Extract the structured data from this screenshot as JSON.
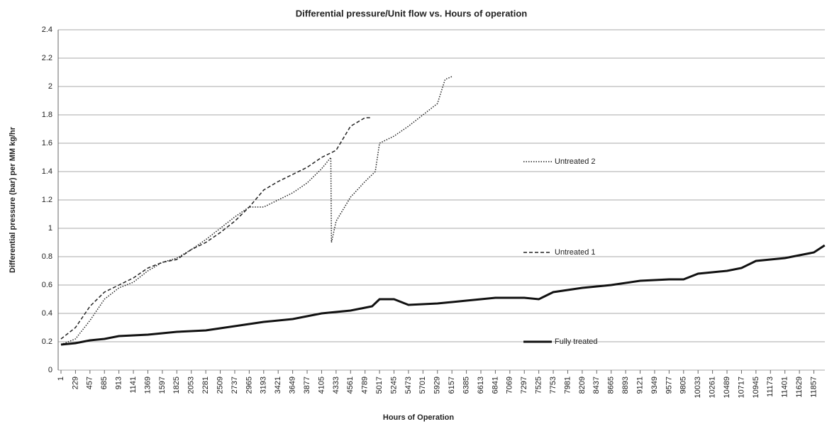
{
  "chart_data": {
    "type": "line",
    "title": "Differential pressure/Unit flow  vs. Hours of operation",
    "x_label": "Hours of Operation",
    "y_label": "Differential pressure (bar) per MM kg/hr",
    "xlim": [
      1,
      12030
    ],
    "ylim": [
      0,
      2.4
    ],
    "yticks": [
      0,
      0.2,
      0.4,
      0.6,
      0.8,
      1,
      1.2,
      1.4,
      1.6,
      1.8,
      2,
      2.2,
      2.4
    ],
    "xticks": [
      1,
      229,
      457,
      685,
      913,
      1141,
      1369,
      1597,
      1825,
      2053,
      2281,
      2509,
      2737,
      2965,
      3193,
      3421,
      3649,
      3877,
      4105,
      4333,
      4561,
      4789,
      5017,
      5245,
      5473,
      5701,
      5929,
      6157,
      6385,
      6613,
      6841,
      7069,
      7297,
      7525,
      7753,
      7981,
      8209,
      8437,
      8665,
      8893,
      9121,
      9349,
      9577,
      9805,
      10033,
      10261,
      10489,
      10717,
      10945,
      11173,
      11401,
      11629,
      11857
    ],
    "grid": true,
    "series": [
      {
        "name": "Untreated 2",
        "color": "#222222",
        "dash": "dotted",
        "width": 1.5,
        "x": [
          1,
          229,
          457,
          685,
          913,
          1141,
          1369,
          1597,
          1825,
          2053,
          2281,
          2509,
          2737,
          2965,
          3193,
          3421,
          3649,
          3877,
          4105,
          4250,
          4260,
          4333,
          4561,
          4789,
          4950,
          5017,
          5245,
          5473,
          5701,
          5929,
          6050,
          6157
        ],
        "values": [
          0.18,
          0.22,
          0.35,
          0.5,
          0.58,
          0.62,
          0.7,
          0.76,
          0.79,
          0.85,
          0.92,
          1.0,
          1.08,
          1.15,
          1.15,
          1.2,
          1.25,
          1.32,
          1.42,
          1.5,
          0.9,
          1.05,
          1.22,
          1.33,
          1.4,
          1.6,
          1.65,
          1.72,
          1.8,
          1.88,
          2.05,
          2.07
        ]
      },
      {
        "name": "Untreated 1",
        "color": "#222222",
        "dash": "dashed",
        "width": 1.5,
        "x": [
          1,
          229,
          457,
          685,
          913,
          1141,
          1369,
          1597,
          1825,
          2053,
          2281,
          2509,
          2737,
          2965,
          3193,
          3421,
          3649,
          3877,
          4105,
          4333,
          4561,
          4789,
          4900
        ],
        "values": [
          0.22,
          0.3,
          0.45,
          0.55,
          0.6,
          0.65,
          0.72,
          0.76,
          0.78,
          0.85,
          0.9,
          0.97,
          1.05,
          1.15,
          1.27,
          1.33,
          1.38,
          1.43,
          1.5,
          1.55,
          1.72,
          1.78,
          1.78
        ]
      },
      {
        "name": "Fully treated",
        "color": "#111111",
        "dash": "solid",
        "width": 3,
        "x": [
          1,
          229,
          457,
          685,
          913,
          1369,
          1825,
          2281,
          2737,
          3193,
          3649,
          4105,
          4561,
          4900,
          5017,
          5245,
          5473,
          5929,
          6385,
          6841,
          7297,
          7525,
          7753,
          8209,
          8665,
          9121,
          9577,
          9805,
          10033,
          10489,
          10717,
          10945,
          11401,
          11857,
          12027
        ],
        "values": [
          0.18,
          0.19,
          0.21,
          0.22,
          0.24,
          0.25,
          0.27,
          0.28,
          0.31,
          0.34,
          0.36,
          0.4,
          0.42,
          0.45,
          0.5,
          0.5,
          0.46,
          0.47,
          0.49,
          0.51,
          0.51,
          0.5,
          0.55,
          0.58,
          0.6,
          0.63,
          0.64,
          0.64,
          0.68,
          0.7,
          0.72,
          0.77,
          0.79,
          0.83,
          0.88
        ]
      }
    ]
  }
}
